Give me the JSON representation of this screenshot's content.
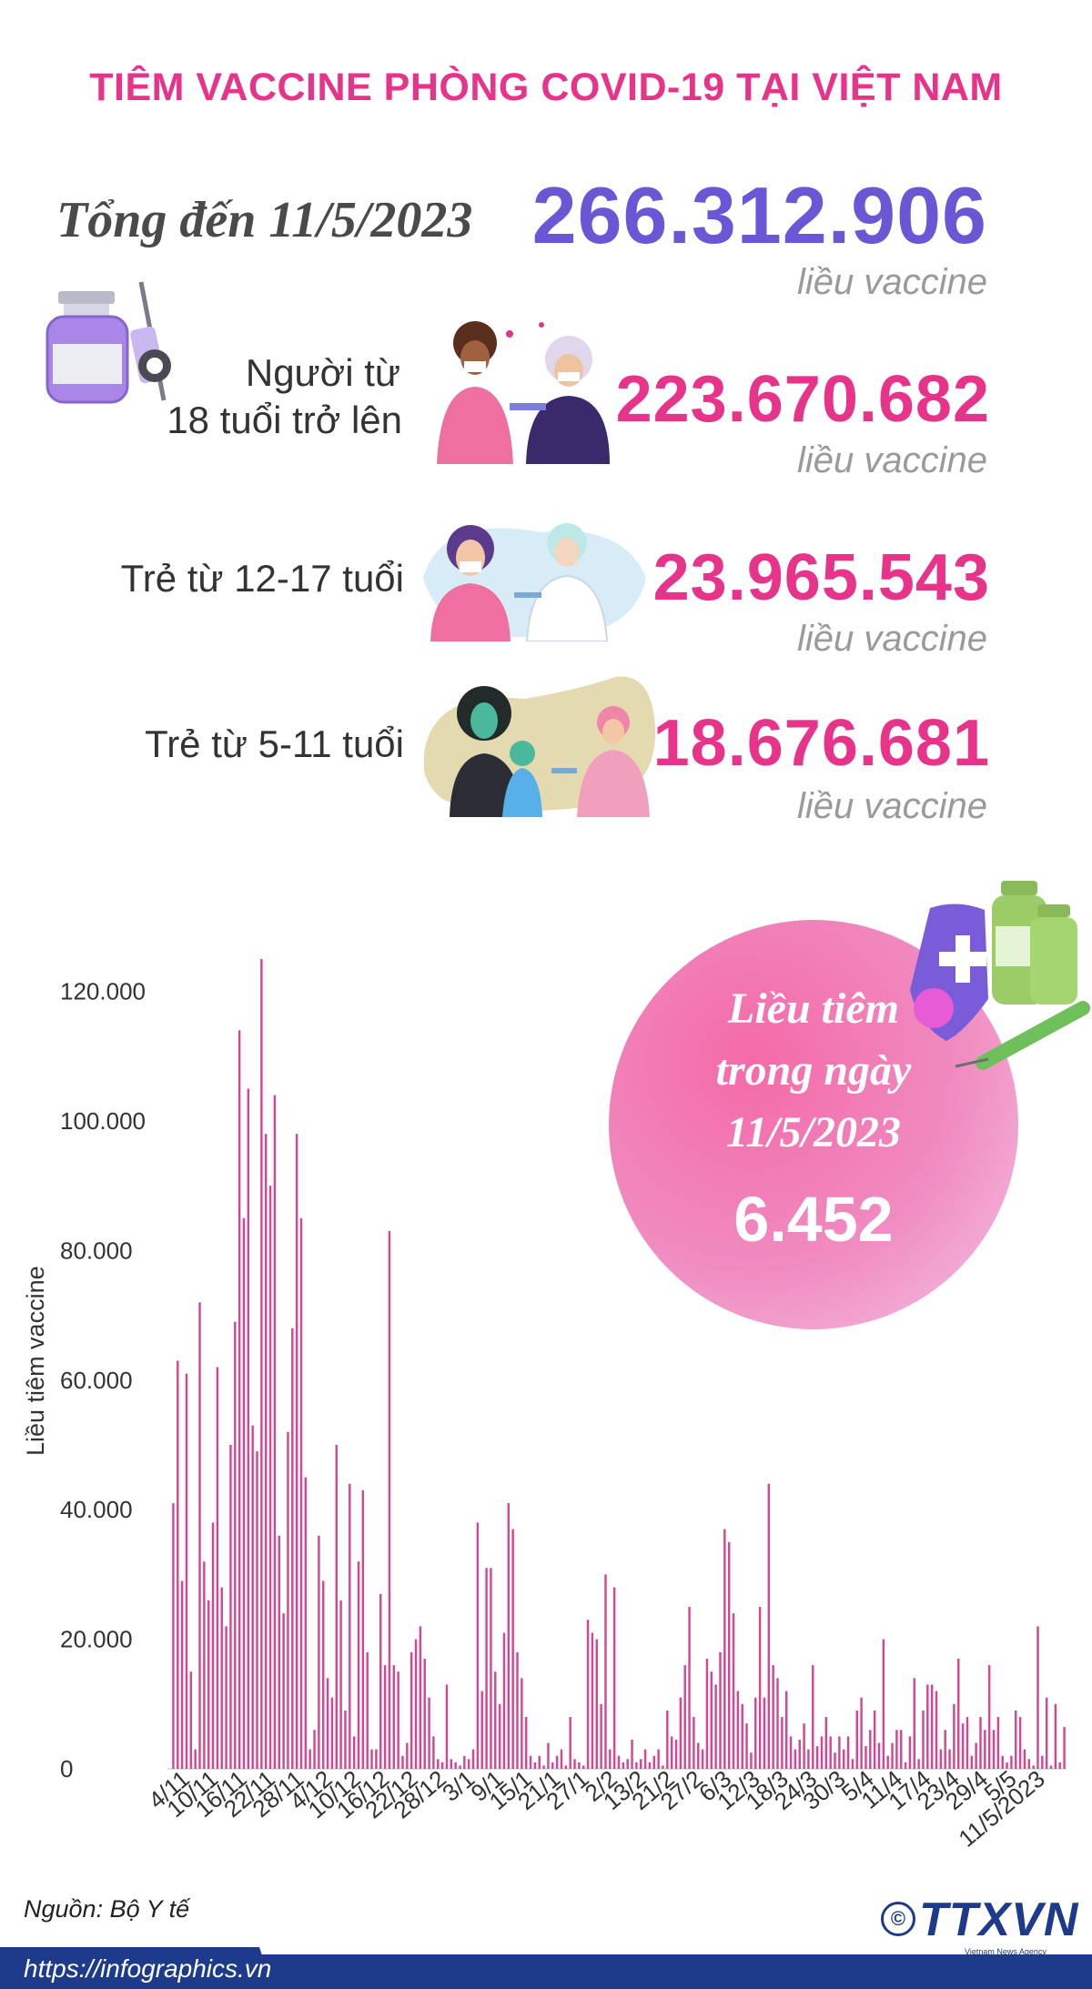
{
  "header": {
    "title": "TIÊM VACCINE PHÒNG COVID-19 TẠI VIỆT NAM"
  },
  "total": {
    "label": "Tổng đến 11/5/2023",
    "value": "266.312.906",
    "unit": "liều vaccine"
  },
  "groups": [
    {
      "label_line1": "Người từ",
      "label_line2": "18 tuổi trở lên",
      "value": "223.670.682",
      "unit": "liều vaccine"
    },
    {
      "label_line1": "Trẻ từ 12-17 tuổi",
      "label_line2": "",
      "value": "23.965.543",
      "unit": "liều vaccine"
    },
    {
      "label_line1": "Trẻ từ 5-11 tuổi",
      "label_line2": "",
      "value": "18.676.681",
      "unit": "liều vaccine"
    }
  ],
  "bubble": {
    "line1": "Liều tiêm",
    "line2": "trong ngày",
    "line3": "11/5/2023",
    "value": "6.452"
  },
  "source": "Nguồn: Bộ Y tế",
  "url": "https://infographics.vn",
  "logo": {
    "text": "TTXVN",
    "copyright": "©",
    "subtitle": "Vietnam News Agency"
  },
  "colors": {
    "title": "#e8338a",
    "total": "#6b56d6",
    "group_value": "#e8338a",
    "bar": "#d6458f",
    "footer": "#1e3a8a"
  },
  "chart_data": {
    "type": "bar",
    "ylabel": "Liều tiêm vaccine",
    "ylim": [
      0,
      125000
    ],
    "yticks": [
      0,
      20000,
      40000,
      60000,
      80000,
      100000,
      120000
    ],
    "ytick_labels": [
      "0",
      "20.000",
      "40.000",
      "60.000",
      "80.000",
      "100.000",
      "120.000"
    ],
    "xtick_labels": [
      "4/11",
      "10/11",
      "16/11",
      "22/11",
      "28/11",
      "4/12",
      "10/12",
      "16/12",
      "22/12",
      "28/12",
      "3/1",
      "9/1",
      "15/1",
      "21/1",
      "27/1",
      "2/2",
      "13/2",
      "21/2",
      "27/2",
      "6/3",
      "12/3",
      "18/3",
      "24/3",
      "30/3",
      "5/4",
      "11/4",
      "17/4",
      "23/4",
      "29/4",
      "5/5",
      "11/5/2023"
    ],
    "values": [
      41000,
      63000,
      29000,
      61000,
      15000,
      3000,
      72000,
      32000,
      26000,
      38000,
      62000,
      28000,
      22000,
      50000,
      69000,
      114000,
      85000,
      105000,
      53000,
      49000,
      125000,
      98000,
      90000,
      104000,
      36000,
      24000,
      52000,
      68000,
      98000,
      85000,
      45000,
      3000,
      6000,
      36000,
      29000,
      14000,
      11000,
      50000,
      26000,
      9000,
      44000,
      5000,
      32000,
      43000,
      18000,
      3000,
      3000,
      27000,
      16000,
      83000,
      16000,
      15000,
      2000,
      4000,
      18000,
      20000,
      22000,
      17000,
      11000,
      5000,
      1500,
      1000,
      13000,
      1500,
      1000,
      500,
      2000,
      1500,
      3000,
      38000,
      12000,
      31000,
      31000,
      15000,
      10000,
      21000,
      41000,
      37000,
      18000,
      14000,
      8000,
      2000,
      1000,
      2000,
      500,
      4000,
      1000,
      2000,
      3000,
      500,
      8000,
      1500,
      1000,
      500,
      23000,
      21000,
      20000,
      10000,
      30000,
      3000,
      28000,
      2000,
      1000,
      1500,
      4500,
      1000,
      1500,
      3000,
      1000,
      2000,
      3000,
      500,
      9000,
      5000,
      4500,
      11000,
      16000,
      25000,
      8000,
      4000,
      3000,
      17000,
      15000,
      13000,
      18000,
      37000,
      35000,
      24000,
      12000,
      10000,
      7000,
      2500,
      11000,
      25000,
      11000,
      44000,
      16000,
      14000,
      8000,
      12000,
      5000,
      3000,
      4500,
      7000,
      3000,
      16000,
      3500,
      5000,
      8000,
      5000,
      2500,
      5000,
      3000,
      5000,
      1500,
      9000,
      11000,
      3500,
      6000,
      9000,
      4000,
      20000,
      2000,
      4000,
      6000,
      6000,
      1000,
      5000,
      14000,
      1500,
      9000,
      13000,
      13000,
      12000,
      3000,
      6000,
      3000,
      10000,
      17000,
      7000,
      8000,
      2000,
      4000,
      8000,
      6000,
      16000,
      6000,
      8000,
      2000,
      1000,
      2000,
      9000,
      8000,
      3000,
      1500,
      500,
      22000,
      2000,
      11000,
      500,
      10000,
      1000,
      6452
    ]
  }
}
